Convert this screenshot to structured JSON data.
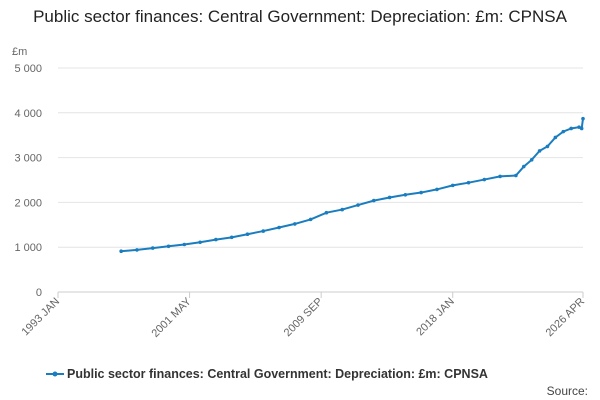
{
  "chart_data": {
    "type": "line",
    "title": "Public sector finances: Central Government: Depreciation: £m: CPNSA",
    "y_unit": "£m",
    "source": "Source:",
    "x": [
      "1997 JAN",
      "1998 JAN",
      "1999 JAN",
      "2000 JAN",
      "2001 JAN",
      "2002 JAN",
      "2003 JAN",
      "2004 JAN",
      "2005 JAN",
      "2006 JAN",
      "2007 JAN",
      "2008 JAN",
      "2009 JAN",
      "2010 JAN",
      "2011 JAN",
      "2012 JAN",
      "2013 JAN",
      "2014 JAN",
      "2015 JAN",
      "2016 JAN",
      "2017 JAN",
      "2018 JAN",
      "2019 JAN",
      "2020 JAN",
      "2021 JAN",
      "2022 JAN",
      "2022 JUL",
      "2023 JAN",
      "2023 JUL",
      "2024 JAN",
      "2024 JUL",
      "2025 JAN",
      "2025 JUL",
      "2026 JAN",
      "2026 MAR",
      "2026 APR"
    ],
    "series": [
      {
        "name": "Public sector finances: Central Government: Depreciation: £m: CPNSA",
        "color": "#1a7dbf",
        "values": [
          910,
          940,
          980,
          1020,
          1060,
          1110,
          1170,
          1220,
          1290,
          1360,
          1440,
          1520,
          1620,
          1770,
          1840,
          1940,
          2040,
          2110,
          2170,
          2220,
          2290,
          2380,
          2440,
          2510,
          2580,
          2600,
          2800,
          2950,
          3150,
          3250,
          3450,
          3580,
          3650,
          3680,
          3650,
          3870
        ]
      }
    ],
    "xlim": [
      "1993 JAN",
      "2026 APR"
    ],
    "xticks": [
      "1993 JAN",
      "2001 MAY",
      "2009 SEP",
      "2018 JAN",
      "2026 APR"
    ],
    "ylim": [
      0,
      5000
    ],
    "yticks": [
      {
        "value": 0,
        "label": "0"
      },
      {
        "value": 1000,
        "label": "1 000"
      },
      {
        "value": 2000,
        "label": "2 000"
      },
      {
        "value": 3000,
        "label": "3 000"
      },
      {
        "value": 4000,
        "label": "4 000"
      },
      {
        "value": 5000,
        "label": "5 000"
      }
    ],
    "grid": true
  }
}
